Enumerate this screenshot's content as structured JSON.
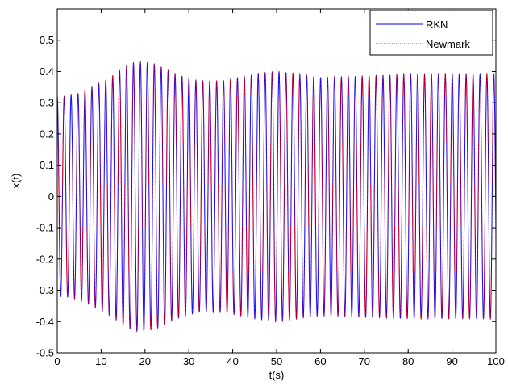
{
  "chart_data": {
    "type": "line",
    "title": "",
    "xlabel": "t(s)",
    "ylabel": "x(t)",
    "xlim": [
      0,
      100
    ],
    "ylim": [
      -0.5,
      0.6
    ],
    "x_ticks": [
      0,
      10,
      20,
      30,
      40,
      50,
      60,
      70,
      80,
      90,
      100
    ],
    "x_tick_labels": [
      "0",
      "10",
      "20",
      "30",
      "40",
      "50",
      "60",
      "70",
      "80",
      "90",
      "100"
    ],
    "y_ticks": [
      -0.5,
      -0.4,
      -0.3,
      -0.2,
      -0.1,
      0,
      0.1,
      0.2,
      0.3,
      0.4,
      0.5
    ],
    "y_tick_labels": [
      "-0.5",
      "-0.4",
      "-0.3",
      "-0.2",
      "-0.1",
      "0",
      "0.1",
      "0.2",
      "0.3",
      "0.4",
      "0.5"
    ],
    "grid": false,
    "legend_position": "top-right",
    "oscillation_period": 1.58,
    "envelope": {
      "t": [
        0,
        2,
        5,
        8,
        12,
        16,
        18,
        20,
        23,
        27,
        32,
        38,
        45,
        50,
        55,
        60,
        70,
        80,
        90,
        100
      ],
      "amplitude": [
        0.32,
        0.32,
        0.33,
        0.35,
        0.38,
        0.42,
        0.43,
        0.43,
        0.42,
        0.39,
        0.37,
        0.37,
        0.39,
        0.4,
        0.39,
        0.38,
        0.385,
        0.39,
        0.39,
        0.39
      ]
    },
    "series": [
      {
        "name": "RKN",
        "color": "#0000ff",
        "style": "solid"
      },
      {
        "name": "Newmark",
        "color": "#ff0000",
        "style": "dotted"
      }
    ]
  }
}
